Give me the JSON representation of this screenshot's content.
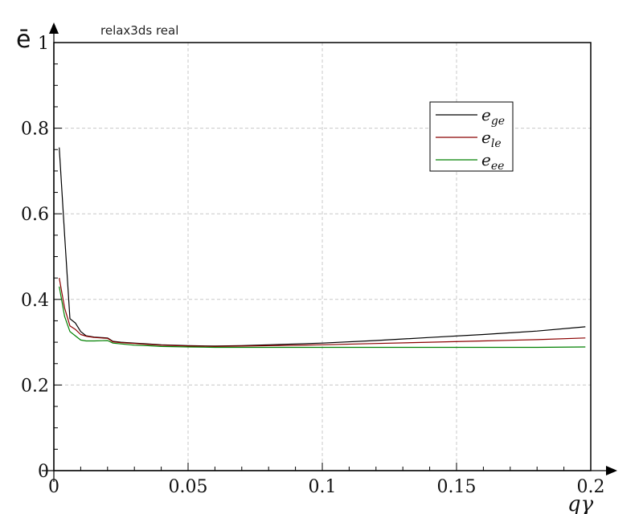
{
  "chart_data": {
    "type": "line",
    "title": "relax3ds real",
    "ylabel": "ē",
    "xlabel": "qγ",
    "xlim": [
      0,
      0.2
    ],
    "ylim": [
      0,
      1
    ],
    "grid": true,
    "legend_position": "top-right",
    "x_ticks": [
      "0",
      "0.05",
      "0.1",
      "0.15",
      "0.2"
    ],
    "y_ticks": [
      "0",
      "0.2",
      "0.4",
      "0.6",
      "0.8",
      "1"
    ],
    "x_tick_values": [
      0,
      0.05,
      0.1,
      0.15,
      0.2
    ],
    "y_tick_values": [
      0,
      0.2,
      0.4,
      0.6,
      0.8,
      1
    ],
    "series": [
      {
        "name": "e_ge",
        "base": "e",
        "sub": "ge",
        "color": "#000000",
        "x": [
          0.002,
          0.004,
          0.006,
          0.008,
          0.01,
          0.012,
          0.015,
          0.02,
          0.022,
          0.025,
          0.03,
          0.035,
          0.04,
          0.05,
          0.06,
          0.07,
          0.08,
          0.1,
          0.12,
          0.14,
          0.16,
          0.18,
          0.198
        ],
        "y": [
          0.755,
          0.55,
          0.355,
          0.345,
          0.325,
          0.315,
          0.312,
          0.31,
          0.302,
          0.3,
          0.298,
          0.296,
          0.294,
          0.292,
          0.291,
          0.292,
          0.294,
          0.298,
          0.304,
          0.311,
          0.318,
          0.326,
          0.336
        ]
      },
      {
        "name": "e_le",
        "base": "e",
        "sub": "le",
        "color": "#8b0000",
        "x": [
          0.002,
          0.004,
          0.006,
          0.008,
          0.01,
          0.012,
          0.015,
          0.02,
          0.022,
          0.025,
          0.03,
          0.035,
          0.04,
          0.05,
          0.06,
          0.07,
          0.08,
          0.1,
          0.12,
          0.14,
          0.16,
          0.18,
          0.198
        ],
        "y": [
          0.45,
          0.38,
          0.338,
          0.33,
          0.318,
          0.314,
          0.311,
          0.309,
          0.301,
          0.299,
          0.297,
          0.295,
          0.293,
          0.291,
          0.29,
          0.291,
          0.292,
          0.294,
          0.297,
          0.3,
          0.303,
          0.306,
          0.31
        ]
      },
      {
        "name": "e_ee",
        "base": "e",
        "sub": "ee",
        "color": "#008000",
        "x": [
          0.002,
          0.004,
          0.006,
          0.008,
          0.01,
          0.012,
          0.015,
          0.02,
          0.022,
          0.025,
          0.03,
          0.035,
          0.04,
          0.05,
          0.06,
          0.07,
          0.08,
          0.1,
          0.12,
          0.14,
          0.16,
          0.18,
          0.198
        ],
        "y": [
          0.43,
          0.36,
          0.325,
          0.315,
          0.305,
          0.303,
          0.303,
          0.304,
          0.298,
          0.296,
          0.293,
          0.292,
          0.29,
          0.289,
          0.288,
          0.288,
          0.288,
          0.288,
          0.288,
          0.288,
          0.288,
          0.288,
          0.289
        ]
      }
    ]
  }
}
